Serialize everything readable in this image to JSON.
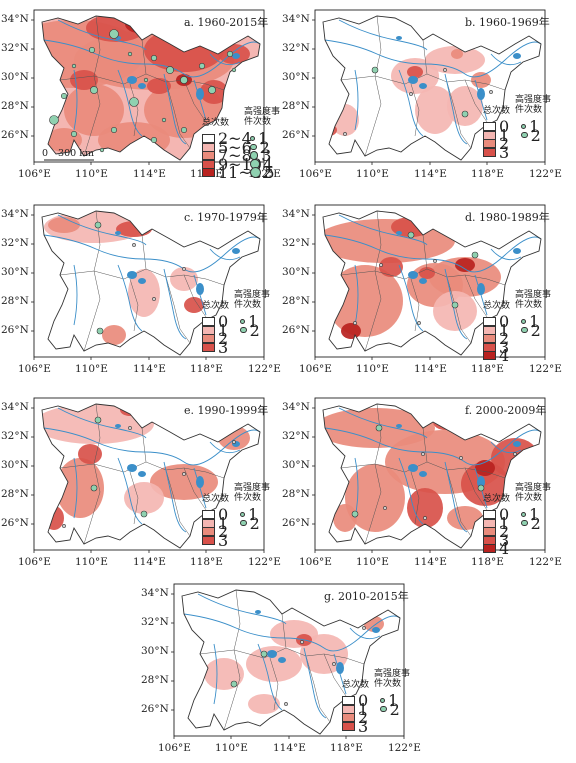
{
  "map": {
    "lon_ticks": [
      "106°E",
      "110°E",
      "114°E",
      "118°E",
      "122°E"
    ],
    "lat_ticks": [
      "34°N",
      "32°N",
      "30°N",
      "28°N",
      "26°N"
    ],
    "legend_total_title": "总次数",
    "legend_high_title": "高强度事件次数",
    "scale_label": "300 km",
    "scale_zero": "0",
    "colors": {
      "class0": "#ffffff",
      "class1": "#f4b6b2",
      "class2": "#e98b7c",
      "class3": "#d8514a",
      "class4": "#b8221f",
      "dot_fill": "#8fd1b0",
      "river": "#3b8fc9",
      "border": "#555555"
    }
  },
  "panels": [
    {
      "id": "a",
      "title": "a. 1960-2015年",
      "total_classes": [
        "2~4",
        "5~6",
        "7~8",
        "9~10",
        "11~12"
      ],
      "high_classes": [
        "1",
        "2",
        "3",
        "4",
        "5"
      ]
    },
    {
      "id": "b",
      "title": "b. 1960-1969年",
      "total_classes": [
        "0",
        "1",
        "2",
        "3"
      ],
      "high_classes": [
        "1",
        "2"
      ]
    },
    {
      "id": "c",
      "title": "c. 1970-1979年",
      "total_classes": [
        "0",
        "1",
        "2",
        "3"
      ],
      "high_classes": [
        "1",
        "2"
      ]
    },
    {
      "id": "d",
      "title": "d. 1980-1989年",
      "total_classes": [
        "0",
        "1",
        "2",
        "3",
        "4"
      ],
      "high_classes": [
        "1",
        "2"
      ]
    },
    {
      "id": "e",
      "title": "e. 1990-1999年",
      "total_classes": [
        "0",
        "1",
        "2",
        "3"
      ],
      "high_classes": [
        "1",
        "2"
      ]
    },
    {
      "id": "f",
      "title": "f. 2000-2009年",
      "total_classes": [
        "0",
        "1",
        "2",
        "3",
        "4"
      ],
      "high_classes": [
        "1",
        "2"
      ]
    },
    {
      "id": "g",
      "title": "g. 2010-2015年",
      "total_classes": [
        "0",
        "1",
        "2",
        "3"
      ],
      "high_classes": [
        "1",
        "2"
      ]
    }
  ]
}
